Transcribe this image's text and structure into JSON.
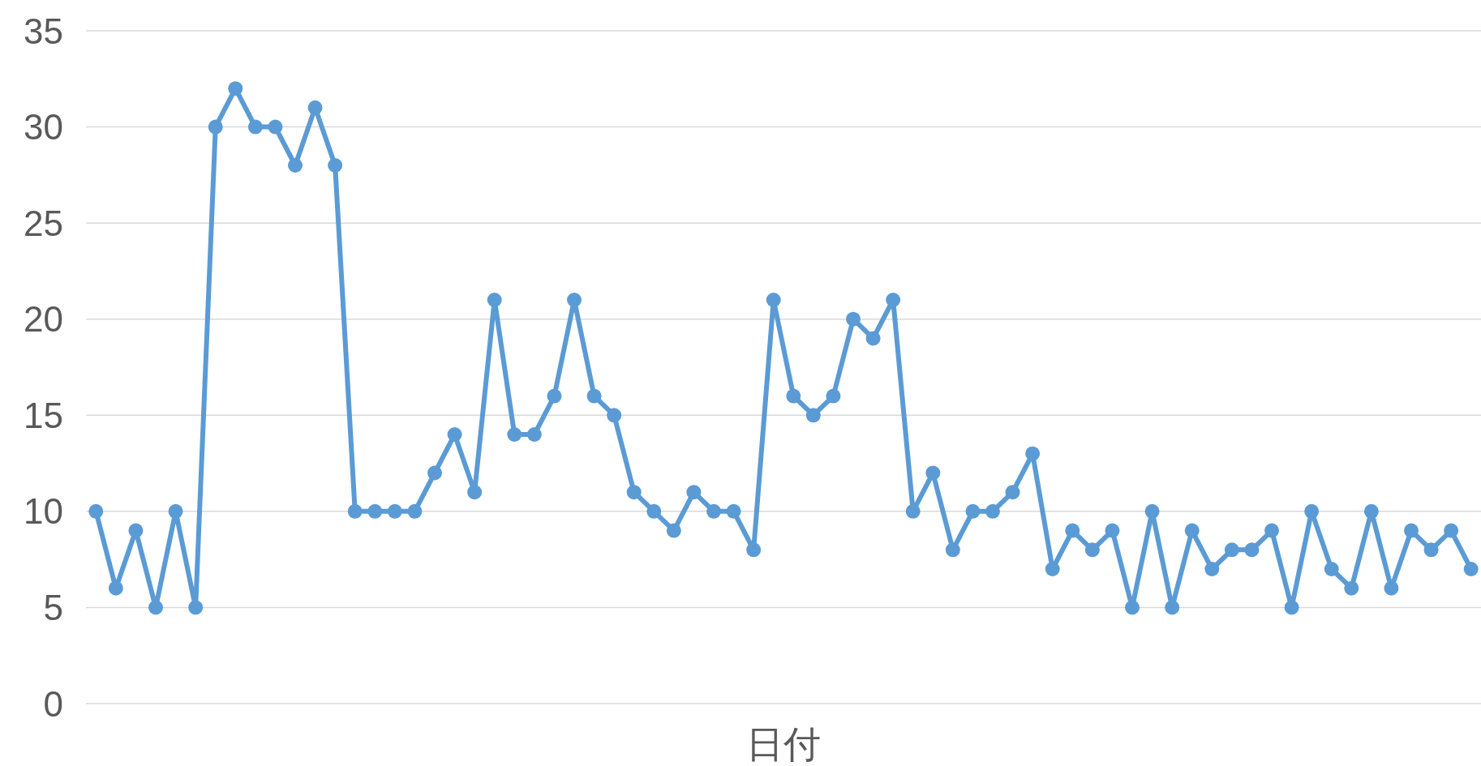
{
  "chart_data": {
    "type": "line",
    "xlabel": "日付",
    "categories": [
      null,
      null,
      null,
      null,
      null,
      null,
      null,
      null,
      null,
      null,
      null,
      null,
      null,
      null,
      null,
      null,
      null,
      null,
      null,
      null,
      null,
      null,
      null,
      null,
      null,
      null,
      null,
      null,
      null,
      null,
      null,
      null,
      null,
      null,
      null,
      null,
      null,
      null,
      null,
      null,
      null,
      null,
      null,
      null,
      null,
      null,
      null,
      null,
      null,
      null,
      null,
      null,
      null,
      null,
      null,
      null,
      null,
      null,
      null,
      null,
      null,
      null,
      null,
      null,
      null,
      null,
      null,
      null,
      null,
      null
    ],
    "series": [
      {
        "color": "#5b9bd5",
        "values": [
          10,
          6,
          9,
          5,
          10,
          5,
          30,
          32,
          30,
          30,
          28,
          31,
          28,
          10,
          10,
          10,
          10,
          12,
          14,
          11,
          21,
          14,
          14,
          16,
          21,
          16,
          15,
          11,
          10,
          9,
          11,
          10,
          10,
          8,
          21,
          16,
          15,
          16,
          20,
          19,
          21,
          10,
          12,
          8,
          10,
          10,
          11,
          13,
          7,
          9,
          8,
          9,
          5,
          10,
          5,
          9,
          7,
          8,
          8,
          9,
          5,
          10,
          7,
          6,
          10,
          6,
          9,
          8,
          9,
          7
        ]
      }
    ],
    "ylim": [
      0,
      35
    ],
    "yticks": [
      0,
      5,
      10,
      15,
      20,
      25,
      30,
      35
    ],
    "grid": "y",
    "marker": "circle",
    "line_style": "solid",
    "tick_labels": "y"
  }
}
